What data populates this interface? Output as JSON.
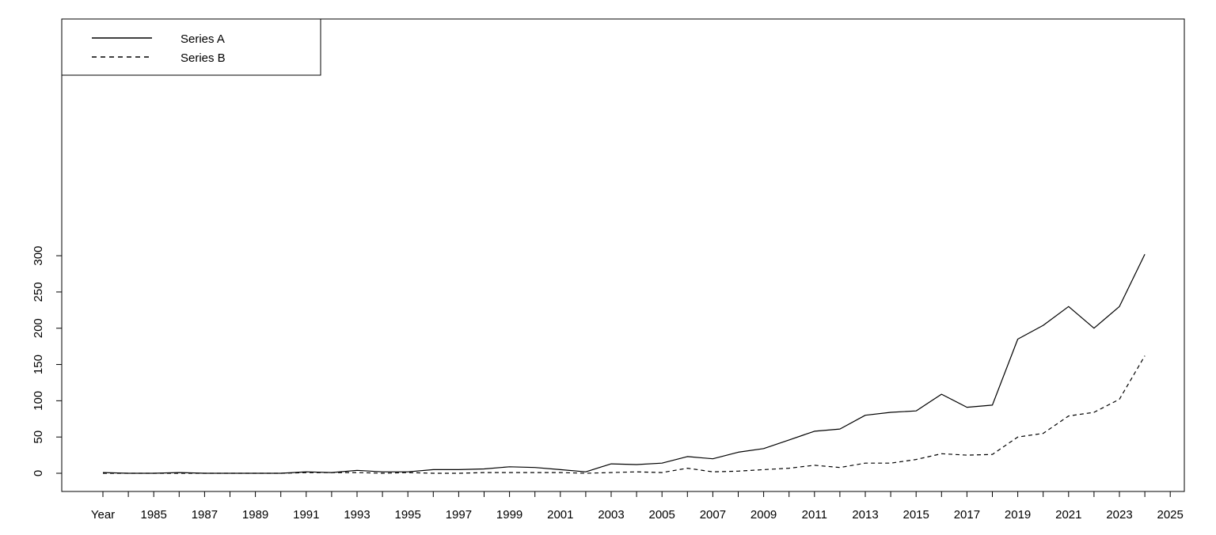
{
  "chart_data": {
    "type": "line",
    "title": "",
    "xlabel": "",
    "ylabel": "",
    "x_tick_labels": [
      "Year",
      "1985",
      "1987",
      "1989",
      "1991",
      "1993",
      "1995",
      "1997",
      "1999",
      "2001",
      "2003",
      "2005",
      "2007",
      "2009",
      "2011",
      "2013",
      "2015",
      "2017",
      "2019",
      "2021",
      "2023",
      "2025"
    ],
    "y_ticks": [
      0,
      50,
      100,
      150,
      200,
      250,
      300
    ],
    "ylim": [
      -12,
      314
    ],
    "grid": false,
    "legend_position": "top-left",
    "x": [
      1983,
      1984,
      1985,
      1986,
      1987,
      1988,
      1989,
      1990,
      1991,
      1992,
      1993,
      1994,
      1995,
      1996,
      1997,
      1998,
      1999,
      2000,
      2001,
      2002,
      2003,
      2004,
      2005,
      2006,
      2007,
      2008,
      2009,
      2010,
      2011,
      2012,
      2013,
      2014,
      2015,
      2016,
      2017,
      2018,
      2019,
      2020,
      2021,
      2022,
      2023,
      2024
    ],
    "series": [
      {
        "name": "Series A",
        "style": "solid",
        "values": [
          1,
          0,
          0,
          1,
          0,
          0,
          0,
          0,
          2,
          1,
          4,
          2,
          2,
          5,
          5,
          6,
          9,
          8,
          5,
          2,
          13,
          12,
          14,
          23,
          20,
          29,
          34,
          46,
          58,
          61,
          80,
          84,
          86,
          109,
          91,
          94,
          185,
          204,
          230,
          200,
          230,
          302
        ]
      },
      {
        "name": "Series B",
        "style": "dashed",
        "values": [
          0,
          0,
          0,
          0,
          0,
          0,
          0,
          0,
          1,
          1,
          1,
          0,
          1,
          0,
          0,
          1,
          1,
          1,
          1,
          0,
          1,
          2,
          1,
          7,
          2,
          3,
          5,
          7,
          11,
          8,
          14,
          14,
          19,
          27,
          25,
          26,
          50,
          55,
          79,
          84,
          102,
          162
        ]
      }
    ]
  }
}
